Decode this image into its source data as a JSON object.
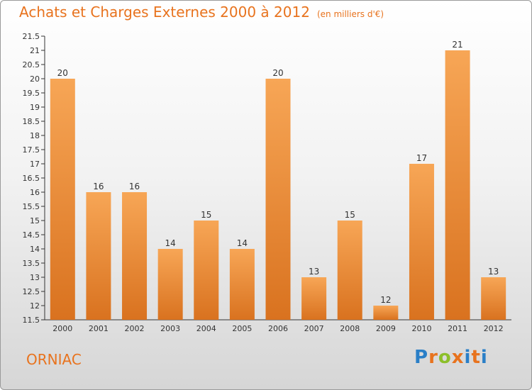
{
  "header": {
    "title": "Achats et Charges Externes 2000 à 2012",
    "unit": "(en milliers d'€)"
  },
  "footer": {
    "commune": "ORNIAC",
    "logo_text": "Proxiti"
  },
  "colors": {
    "accent": "#e8731e",
    "bar_top": "#f7a656",
    "bar_bottom": "#d9721f"
  },
  "chart_data": {
    "type": "bar",
    "title": "Achats et Charges Externes 2000 à 2012",
    "subtitle": "(en milliers d'€)",
    "categories": [
      "2000",
      "2001",
      "2002",
      "2003",
      "2004",
      "2005",
      "2006",
      "2007",
      "2008",
      "2009",
      "2010",
      "2011",
      "2012"
    ],
    "values": [
      20,
      16,
      16,
      14,
      15,
      14,
      20,
      13,
      15,
      12,
      17,
      21,
      13
    ],
    "ylim": [
      11.5,
      21.5
    ],
    "yticks": [
      11.5,
      12,
      12.5,
      13,
      13.5,
      14,
      14.5,
      15,
      15.5,
      16,
      16.5,
      17,
      17.5,
      18,
      18.5,
      19,
      19.5,
      20,
      20.5,
      21,
      21.5
    ],
    "grid": false,
    "legend": "none"
  }
}
